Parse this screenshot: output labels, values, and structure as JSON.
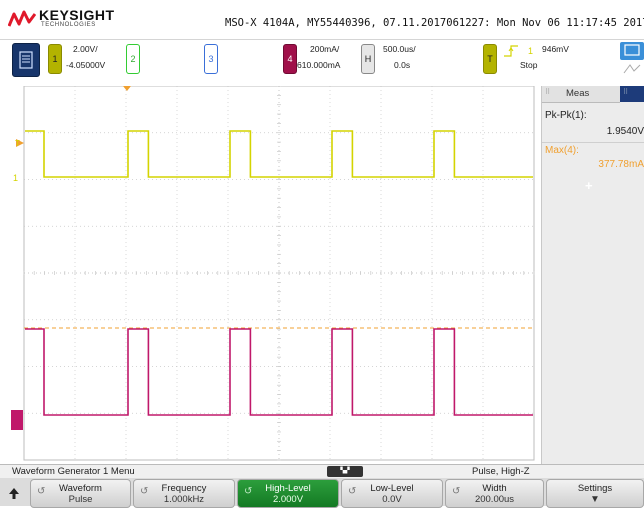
{
  "brand": {
    "name": "KEYSIGHT",
    "sub": "TECHNOLOGIES"
  },
  "title": "MSO-X 4104A, MY55440396, 07.11.2017061227: Mon Nov 06 11:17:45 2017",
  "channels": [
    {
      "num": "1",
      "scale": "2.00V/",
      "offset": "-4.05000V",
      "color": "#c8c800"
    },
    {
      "num": "2",
      "color": "#33cc33"
    },
    {
      "num": "3",
      "color": "#3a6fd8"
    },
    {
      "num": "4",
      "scale": "200mA/",
      "offset": "610.000mA",
      "color": "#a0104a"
    }
  ],
  "timebase": {
    "label": "H",
    "scale": "500.0us/",
    "delay": "0.0s"
  },
  "trigger": {
    "label": "T",
    "level": "946mV",
    "state": "Stop"
  },
  "measurements": {
    "tab": "Meas",
    "items": [
      {
        "label": "Pk-Pk(1):",
        "value": "1.9540V",
        "color": "#222222"
      },
      {
        "label": "Max(4):",
        "value": "377.78mA",
        "color": "#f0a030"
      }
    ]
  },
  "menu": {
    "title": "Waveform Generator 1 Menu",
    "status": "Pulse, High-Z"
  },
  "softkeys": [
    {
      "label": "Waveform",
      "value": "Pulse",
      "active": false
    },
    {
      "label": "Frequency",
      "value": "1.000kHz",
      "active": false
    },
    {
      "label": "High-Level",
      "value": "2.000V",
      "active": true
    },
    {
      "label": "Low-Level",
      "value": "0.0V",
      "active": false
    },
    {
      "label": "Width",
      "value": "200.00us",
      "active": false
    },
    {
      "label": "Settings",
      "value": "",
      "active": false
    }
  ],
  "colors": {
    "ch1": "#d4d400",
    "ch4": "#c0186a",
    "grid": "#c8c8c8",
    "cursor": "#f0a030"
  }
}
